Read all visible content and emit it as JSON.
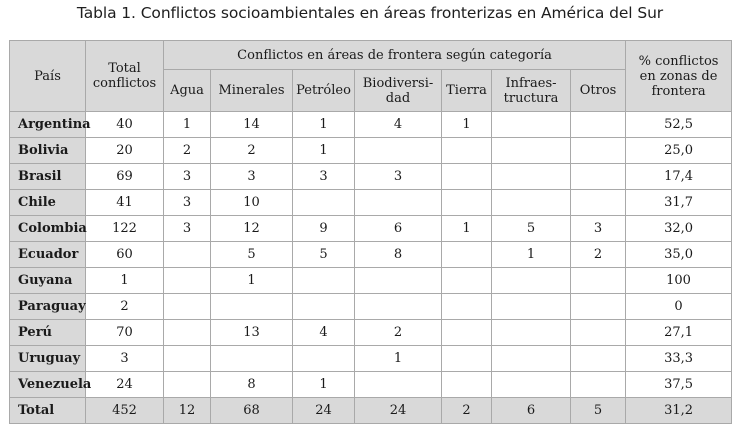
{
  "caption": "Tabla 1. Conflictos socioambientales en áreas fronterizas en América del Sur",
  "header": {
    "pais": "País",
    "total": [
      "Total",
      "conflictos"
    ],
    "group": "Conflictos en áreas de frontera según categoría",
    "categories": [
      [
        "Agua"
      ],
      [
        "Minerales"
      ],
      [
        "Petróleo"
      ],
      [
        "Biodiversi-",
        "dad"
      ],
      [
        "Tierra"
      ],
      [
        "Infraes-",
        "tructura"
      ],
      [
        "Otros"
      ]
    ],
    "percent": [
      "% conflictos",
      "en zonas de",
      "frontera"
    ]
  },
  "rows": [
    {
      "pais": "Argentina",
      "total": "40",
      "agua": "1",
      "minerales": "14",
      "petroleo": "1",
      "biodiversidad": "4",
      "tierra": "1",
      "infraestructura": "",
      "otros": "",
      "pct": "52,5"
    },
    {
      "pais": "Bolivia",
      "total": "20",
      "agua": "2",
      "minerales": "2",
      "petroleo": "1",
      "biodiversidad": "",
      "tierra": "",
      "infraestructura": "",
      "otros": "",
      "pct": "25,0"
    },
    {
      "pais": "Brasil",
      "total": "69",
      "agua": "3",
      "minerales": "3",
      "petroleo": "3",
      "biodiversidad": "3",
      "tierra": "",
      "infraestructura": "",
      "otros": "",
      "pct": "17,4"
    },
    {
      "pais": "Chile",
      "total": "41",
      "agua": "3",
      "minerales": "10",
      "petroleo": "",
      "biodiversidad": "",
      "tierra": "",
      "infraestructura": "",
      "otros": "",
      "pct": "31,7"
    },
    {
      "pais": "Colombia",
      "total": "122",
      "agua": "3",
      "minerales": "12",
      "petroleo": "9",
      "biodiversidad": "6",
      "tierra": "1",
      "infraestructura": "5",
      "otros": "3",
      "pct": "32,0"
    },
    {
      "pais": "Ecuador",
      "total": "60",
      "agua": "",
      "minerales": "5",
      "petroleo": "5",
      "biodiversidad": "8",
      "tierra": "",
      "infraestructura": "1",
      "otros": "2",
      "pct": "35,0"
    },
    {
      "pais": "Guyana",
      "total": "1",
      "agua": "",
      "minerales": "1",
      "petroleo": "",
      "biodiversidad": "",
      "tierra": "",
      "infraestructura": "",
      "otros": "",
      "pct": "100"
    },
    {
      "pais": "Paraguay",
      "total": "2",
      "agua": "",
      "minerales": "",
      "petroleo": "",
      "biodiversidad": "",
      "tierra": "",
      "infraestructura": "",
      "otros": "",
      "pct": "0"
    },
    {
      "pais": "Perú",
      "total": "70",
      "agua": "",
      "minerales": "13",
      "petroleo": "4",
      "biodiversidad": "2",
      "tierra": "",
      "infraestructura": "",
      "otros": "",
      "pct": "27,1"
    },
    {
      "pais": "Uruguay",
      "total": "3",
      "agua": "",
      "minerales": "",
      "petroleo": "",
      "biodiversidad": "1",
      "tierra": "",
      "infraestructura": "",
      "otros": "",
      "pct": "33,3"
    },
    {
      "pais": "Venezuela",
      "total": "24",
      "agua": "",
      "minerales": "8",
      "petroleo": "1",
      "biodiversidad": "",
      "tierra": "",
      "infraestructura": "",
      "otros": "",
      "pct": "37,5"
    }
  ],
  "total_row": {
    "pais": "Total",
    "total": "452",
    "agua": "12",
    "minerales": "68",
    "petroleo": "24",
    "biodiversidad": "24",
    "tierra": "2",
    "infraestructura": "6",
    "otros": "5",
    "pct": "31,2"
  },
  "colors": {
    "header_bg": "#d9d9d9",
    "border": "#a9a9a9"
  }
}
